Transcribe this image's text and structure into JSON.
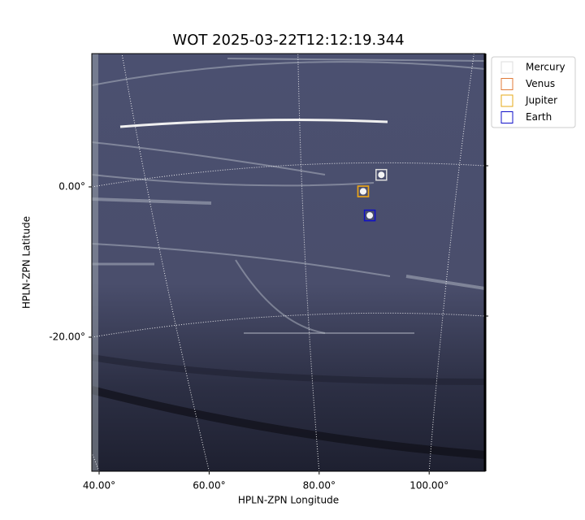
{
  "chart_data": {
    "type": "scatter",
    "title": "WOT 2025-03-22T12:12:19.344",
    "xlabel": "HPLN-ZPN Longitude",
    "ylabel": "HPLN-ZPN Latitude",
    "xlim": [
      38.67,
      110.16
    ],
    "ylim": [
      -37.84,
      17.73
    ],
    "xticks": [
      {
        "value": 40,
        "label": "40.00°"
      },
      {
        "value": 60,
        "label": "60.00°"
      },
      {
        "value": 80,
        "label": "80.00°"
      },
      {
        "value": 100,
        "label": "100.00°"
      }
    ],
    "yticks": [
      {
        "value": 0,
        "label": "0.00°"
      },
      {
        "value": -20,
        "label": "-20.00°"
      }
    ],
    "grid": true,
    "legend": "upper right outside",
    "series": [
      {
        "name": "Mercury",
        "color": "#dddddd",
        "x": [
          91.3
        ],
        "values": [
          1.6
        ]
      },
      {
        "name": "Venus",
        "color": "#e07b39",
        "x": [
          88.0
        ],
        "values": [
          -0.6
        ]
      },
      {
        "name": "Jupiter",
        "color": "#e6a817",
        "x": [
          88.0
        ],
        "values": [
          -0.6
        ]
      },
      {
        "name": "Earth",
        "color": "#1010c8",
        "x": [
          89.2
        ],
        "values": [
          -3.8
        ]
      }
    ]
  }
}
